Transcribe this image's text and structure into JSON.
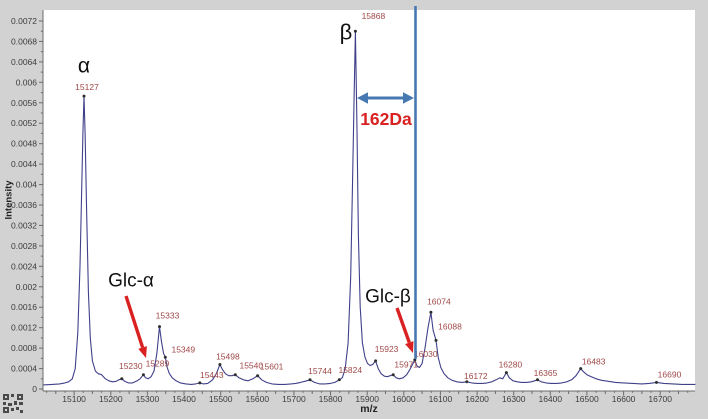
{
  "colors": {
    "background": "#d2d2d2",
    "plot_background": "#ffffff",
    "curve": "#40408a",
    "axis": "#6b6b6b",
    "tick_text": "#3c3c3c",
    "peak_label": "#a04848",
    "annotation_red": "#d92121",
    "annotation_blue": "#4679b2",
    "annotation_black": "#111111"
  },
  "annotations": {
    "alpha": {
      "text": "α"
    },
    "beta": {
      "text": "β"
    },
    "glc_alpha": {
      "text": "Glc-α"
    },
    "glc_beta": {
      "text": "Glc-β"
    },
    "mass_shift": {
      "text": "162Da"
    }
  },
  "chart_data": {
    "type": "line",
    "title": "",
    "xlabel": "m/z",
    "ylabel": "Intensity",
    "xlim": [
      15015,
      16795
    ],
    "ylim": [
      0,
      0.0072
    ],
    "grid": false,
    "legend": "none",
    "x_ticks": [
      15100,
      15200,
      15300,
      15400,
      15500,
      15600,
      15700,
      15800,
      15900,
      16000,
      16100,
      16200,
      16300,
      16400,
      16500,
      16600,
      16700
    ],
    "y_ticks": [
      {
        "v": 0,
        "label": "0"
      },
      {
        "v": 0.0004,
        "label": "0.0004"
      },
      {
        "v": 0.0008,
        "label": "0.0008"
      },
      {
        "v": 0.0012,
        "label": "0.0012"
      },
      {
        "v": 0.0016,
        "label": "0.0016"
      },
      {
        "v": 0.002,
        "label": "0.002"
      },
      {
        "v": 0.0024,
        "label": "0.0024"
      },
      {
        "v": 0.0028,
        "label": "0.0028"
      },
      {
        "v": 0.0032,
        "label": "0.0032"
      },
      {
        "v": 0.0036,
        "label": "0.0036"
      },
      {
        "v": 0.004,
        "label": "0.004"
      },
      {
        "v": 0.0044,
        "label": "0.0044"
      },
      {
        "v": 0.0048,
        "label": "0.0048"
      },
      {
        "v": 0.0052,
        "label": "0.0052"
      },
      {
        "v": 0.0056,
        "label": "0.0056"
      },
      {
        "v": 0.006,
        "label": "0.006"
      },
      {
        "v": 0.0064,
        "label": "0.0064"
      },
      {
        "v": 0.0068,
        "label": "0.0068"
      },
      {
        "v": 0.0072,
        "label": "0.0072"
      }
    ],
    "peaks": [
      {
        "mz": 15127,
        "i": 0.00573,
        "label": "15127",
        "dx": 3,
        "dy": -9
      },
      {
        "mz": 15230,
        "i": 0.0002,
        "label": "15230",
        "dx": 9,
        "dy": -13
      },
      {
        "mz": 15289,
        "i": 0.00028,
        "label": "15289",
        "dx": 14,
        "dy": -11
      },
      {
        "mz": 15333,
        "i": 0.00122,
        "label": "15333",
        "dx": 8,
        "dy": -11
      },
      {
        "mz": 15349,
        "i": 0.00062,
        "label": "15349",
        "dx": 18,
        "dy": -8
      },
      {
        "mz": 15443,
        "i": 0.00012,
        "label": "15443",
        "dx": 12,
        "dy": -8
      },
      {
        "mz": 15498,
        "i": 0.00048,
        "label": "15498",
        "dx": 8,
        "dy": -8
      },
      {
        "mz": 15540,
        "i": 0.00028,
        "label": "15540",
        "dx": 16,
        "dy": -9
      },
      {
        "mz": 15601,
        "i": 0.00026,
        "label": "15601",
        "dx": 14,
        "dy": -9
      },
      {
        "mz": 15744,
        "i": 0.00018,
        "label": "15744",
        "dx": 10,
        "dy": -9
      },
      {
        "mz": 15824,
        "i": 0.00018,
        "label": "15824",
        "dx": 11,
        "dy": -10
      },
      {
        "mz": 15868,
        "i": 0.007,
        "label": "15868",
        "dx": 18,
        "dy": -15
      },
      {
        "mz": 15923,
        "i": 0.00055,
        "label": "15923",
        "dx": 11,
        "dy": -12
      },
      {
        "mz": 15971,
        "i": 0.00028,
        "label": "15971",
        "dx": 13,
        "dy": -10
      },
      {
        "mz": 16030,
        "i": 0.00057,
        "label": "16030",
        "dx": 11,
        "dy": -6
      },
      {
        "mz": 16074,
        "i": 0.0015,
        "label": "16074",
        "dx": 8,
        "dy": -11
      },
      {
        "mz": 16088,
        "i": 0.00095,
        "label": "16088",
        "dx": 14,
        "dy": -14
      },
      {
        "mz": 16172,
        "i": 0.00014,
        "label": "16172",
        "dx": 9,
        "dy": -6
      },
      {
        "mz": 16280,
        "i": 0.00032,
        "label": "16280",
        "dx": 4,
        "dy": -8
      },
      {
        "mz": 16365,
        "i": 0.00018,
        "label": "16365",
        "dx": 8,
        "dy": -7
      },
      {
        "mz": 16483,
        "i": 0.0004,
        "label": "16483",
        "dx": 13,
        "dy": -7
      },
      {
        "mz": 16690,
        "i": 0.00013,
        "label": "16690",
        "dx": 13,
        "dy": -8
      }
    ],
    "curve": [
      [
        15015,
        8e-05
      ],
      [
        15040,
        9e-05
      ],
      [
        15060,
        0.0001
      ],
      [
        15075,
        0.00012
      ],
      [
        15085,
        0.00014
      ],
      [
        15095,
        0.0002
      ],
      [
        15103,
        0.0004
      ],
      [
        15110,
        0.0011
      ],
      [
        15116,
        0.0024
      ],
      [
        15121,
        0.004
      ],
      [
        15124,
        0.005
      ],
      [
        15127,
        0.00573
      ],
      [
        15130,
        0.005
      ],
      [
        15134,
        0.0035
      ],
      [
        15139,
        0.0019
      ],
      [
        15144,
        0.001
      ],
      [
        15150,
        0.00055
      ],
      [
        15158,
        0.00035
      ],
      [
        15166,
        0.0003
      ],
      [
        15175,
        0.00028
      ],
      [
        15185,
        0.0002
      ],
      [
        15195,
        0.00016
      ],
      [
        15205,
        0.00014
      ],
      [
        15215,
        0.00015
      ],
      [
        15222,
        0.00018
      ],
      [
        15230,
        0.0002
      ],
      [
        15238,
        0.00015
      ],
      [
        15248,
        0.00012
      ],
      [
        15260,
        0.00012
      ],
      [
        15272,
        0.00016
      ],
      [
        15280,
        0.0002
      ],
      [
        15289,
        0.00028
      ],
      [
        15295,
        0.00022
      ],
      [
        15302,
        0.0002
      ],
      [
        15310,
        0.00024
      ],
      [
        15318,
        0.00035
      ],
      [
        15326,
        0.0007
      ],
      [
        15333,
        0.00122
      ],
      [
        15338,
        0.00095
      ],
      [
        15344,
        0.0007
      ],
      [
        15349,
        0.00062
      ],
      [
        15354,
        0.00042
      ],
      [
        15360,
        0.0003
      ],
      [
        15368,
        0.00022
      ],
      [
        15378,
        0.00016
      ],
      [
        15390,
        0.00012
      ],
      [
        15405,
        0.0001
      ],
      [
        15420,
        9e-05
      ],
      [
        15432,
        0.0001
      ],
      [
        15443,
        0.00012
      ],
      [
        15452,
        0.0001
      ],
      [
        15465,
        0.00011
      ],
      [
        15478,
        0.00018
      ],
      [
        15488,
        0.0003
      ],
      [
        15498,
        0.00048
      ],
      [
        15505,
        0.00038
      ],
      [
        15513,
        0.0003
      ],
      [
        15522,
        0.00026
      ],
      [
        15531,
        0.00026
      ],
      [
        15540,
        0.00028
      ],
      [
        15550,
        0.00022
      ],
      [
        15562,
        0.00018
      ],
      [
        15575,
        0.00016
      ],
      [
        15588,
        0.0002
      ],
      [
        15601,
        0.00026
      ],
      [
        15612,
        0.00018
      ],
      [
        15625,
        0.00013
      ],
      [
        15640,
        0.0001
      ],
      [
        15658,
        9e-05
      ],
      [
        15675,
        9e-05
      ],
      [
        15692,
        0.0001
      ],
      [
        15705,
        0.00011
      ],
      [
        15718,
        0.00013
      ],
      [
        15730,
        0.00015
      ],
      [
        15744,
        0.00018
      ],
      [
        15756,
        0.00013
      ],
      [
        15770,
        0.0001
      ],
      [
        15785,
        0.0001
      ],
      [
        15800,
        0.00011
      ],
      [
        15812,
        0.00013
      ],
      [
        15824,
        0.00018
      ],
      [
        15832,
        0.00022
      ],
      [
        15840,
        0.0004
      ],
      [
        15848,
        0.0009
      ],
      [
        15855,
        0.0022
      ],
      [
        15860,
        0.004
      ],
      [
        15864,
        0.0056
      ],
      [
        15868,
        0.007
      ],
      [
        15872,
        0.0052
      ],
      [
        15876,
        0.003
      ],
      [
        15881,
        0.0016
      ],
      [
        15887,
        0.0009
      ],
      [
        15894,
        0.00062
      ],
      [
        15901,
        0.0005
      ],
      [
        15908,
        0.00046
      ],
      [
        15915,
        0.00048
      ],
      [
        15923,
        0.00055
      ],
      [
        15930,
        0.0004
      ],
      [
        15938,
        0.0003
      ],
      [
        15947,
        0.00025
      ],
      [
        15955,
        0.00024
      ],
      [
        15963,
        0.00026
      ],
      [
        15971,
        0.00028
      ],
      [
        15979,
        0.00022
      ],
      [
        15988,
        0.0002
      ],
      [
        15998,
        0.00022
      ],
      [
        16008,
        0.00028
      ],
      [
        16018,
        0.0004
      ],
      [
        16030,
        0.00057
      ],
      [
        16036,
        0.00045
      ],
      [
        16043,
        0.00042
      ],
      [
        16050,
        0.0005
      ],
      [
        16058,
        0.0008
      ],
      [
        16066,
        0.0012
      ],
      [
        16074,
        0.0015
      ],
      [
        16080,
        0.00115
      ],
      [
        16088,
        0.00095
      ],
      [
        16094,
        0.00062
      ],
      [
        16101,
        0.00042
      ],
      [
        16110,
        0.0003
      ],
      [
        16120,
        0.00022
      ],
      [
        16132,
        0.00017
      ],
      [
        16145,
        0.00014
      ],
      [
        16158,
        0.00013
      ],
      [
        16172,
        0.00014
      ],
      [
        16185,
        0.00012
      ],
      [
        16200,
        0.00011
      ],
      [
        16215,
        0.00011
      ],
      [
        16228,
        0.00012
      ],
      [
        16240,
        0.00014
      ],
      [
        16252,
        0.00018
      ],
      [
        16262,
        0.00022
      ],
      [
        16270,
        0.0002
      ],
      [
        16280,
        0.00032
      ],
      [
        16288,
        0.00022
      ],
      [
        16298,
        0.00016
      ],
      [
        16310,
        0.00014
      ],
      [
        16322,
        0.00013
      ],
      [
        16335,
        0.00013
      ],
      [
        16348,
        0.00014
      ],
      [
        16357,
        0.00016
      ],
      [
        16365,
        0.00018
      ],
      [
        16375,
        0.00014
      ],
      [
        16388,
        0.00012
      ],
      [
        16402,
        0.00011
      ],
      [
        16418,
        0.00011
      ],
      [
        16432,
        0.00012
      ],
      [
        16445,
        0.00014
      ],
      [
        16458,
        0.00018
      ],
      [
        16470,
        0.00026
      ],
      [
        16483,
        0.0004
      ],
      [
        16490,
        0.00034
      ],
      [
        16500,
        0.00028
      ],
      [
        16512,
        0.00024
      ],
      [
        16525,
        0.0002
      ],
      [
        16540,
        0.00017
      ],
      [
        16558,
        0.00015
      ],
      [
        16578,
        0.00013
      ],
      [
        16600,
        0.00012
      ],
      [
        16625,
        0.00011
      ],
      [
        16650,
        0.0001
      ],
      [
        16670,
        0.00011
      ],
      [
        16690,
        0.00013
      ],
      [
        16710,
        0.00011
      ],
      [
        16735,
        0.0001
      ],
      [
        16760,
        9e-05
      ],
      [
        16795,
        9e-05
      ]
    ]
  }
}
